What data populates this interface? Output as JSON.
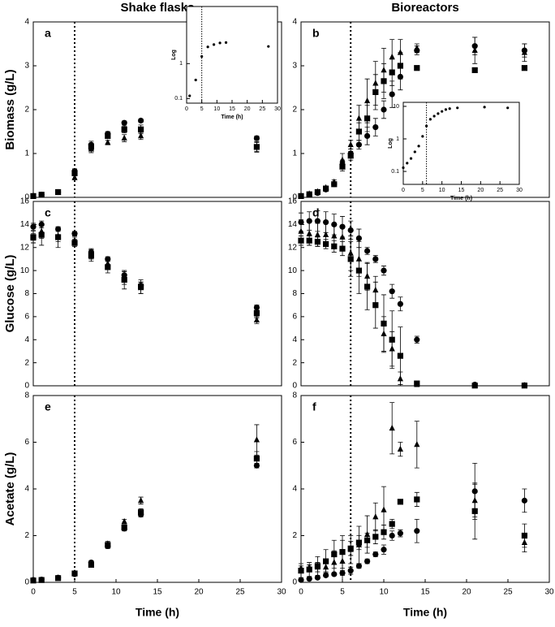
{
  "chart_data": [
    {
      "type": "scatter",
      "title": "Shake flasks",
      "label": "a",
      "ylabel": "Biomass (g/L)",
      "x": [
        0,
        1,
        3,
        5,
        7,
        9,
        11,
        13,
        27
      ],
      "xlim": [
        0,
        30
      ],
      "ylim": [
        0,
        4
      ],
      "yticks": [
        0,
        1,
        2,
        3,
        4
      ],
      "vline": 5,
      "series": [
        {
          "marker": "circle",
          "values": [
            0.03,
            0.06,
            0.12,
            0.6,
            1.2,
            1.45,
            1.7,
            1.75,
            1.35
          ],
          "errors": [
            0.01,
            0.01,
            0.02,
            0.05,
            0.08,
            0.05,
            0.04,
            0.04,
            0.05
          ]
        },
        {
          "marker": "square",
          "values": [
            0.03,
            0.06,
            0.12,
            0.55,
            1.15,
            1.4,
            1.55,
            1.55,
            1.15
          ],
          "errors": [
            0.01,
            0.01,
            0.02,
            0.05,
            0.08,
            0.05,
            0.08,
            0.1,
            0.12
          ]
        },
        {
          "marker": "triangle",
          "values": [
            0.03,
            0.05,
            0.11,
            0.45,
            1.1,
            1.25,
            1.35,
            1.4,
            1.15
          ],
          "errors": [
            0.01,
            0.01,
            0.02,
            0.05,
            0.08,
            0.05,
            0.08,
            0.08,
            0.1
          ]
        }
      ]
    },
    {
      "type": "scatter",
      "log": true,
      "ylabel": "Log",
      "xlabel": "Time (h)",
      "x": [
        1,
        3,
        5,
        7,
        9,
        11,
        13,
        27
      ],
      "xlim": [
        0,
        30
      ],
      "xticks": [
        0,
        5,
        10,
        15,
        20,
        25,
        30
      ],
      "ylim": [
        0.074,
        43
      ],
      "yticks": [
        0.1,
        1
      ],
      "vline": 5,
      "series": [
        {
          "marker": "circle",
          "values": [
            0.12,
            0.34,
            1.6,
            3.0,
            3.5,
            3.9,
            4.0,
            3.1
          ]
        }
      ]
    },
    {
      "type": "scatter",
      "title": "Bioreactors",
      "label": "b",
      "x": [
        0,
        1,
        2,
        3,
        4,
        5,
        6,
        7,
        8,
        9,
        10,
        11,
        12,
        14,
        21,
        27
      ],
      "xlim": [
        0,
        30
      ],
      "ylim": [
        0,
        4
      ],
      "yticks": [
        0,
        1,
        2,
        3,
        4
      ],
      "vline": 6,
      "series": [
        {
          "marker": "circle",
          "values": [
            0.03,
            0.06,
            0.1,
            0.18,
            0.3,
            0.75,
            1.0,
            1.2,
            1.4,
            1.6,
            2.0,
            2.35,
            2.75,
            3.35,
            3.45,
            3.35
          ],
          "errors": [
            0.01,
            0.02,
            0.03,
            0.04,
            0.05,
            0.1,
            0.1,
            0.1,
            0.2,
            0.2,
            0.2,
            0.3,
            0.3,
            0.1,
            0.2,
            0.15
          ]
        },
        {
          "marker": "square",
          "values": [
            0.03,
            0.07,
            0.12,
            0.2,
            0.3,
            0.7,
            0.95,
            1.5,
            1.8,
            2.4,
            2.65,
            2.85,
            3.0,
            2.95,
            2.9,
            2.95
          ],
          "errors": [
            0.01,
            0.02,
            0.03,
            0.04,
            0.05,
            0.1,
            0.1,
            0.2,
            0.3,
            0.4,
            0.4,
            0.3,
            0.3,
            0.05,
            0.05,
            0.05
          ]
        },
        {
          "marker": "triangle",
          "values": [
            0.04,
            0.08,
            0.13,
            0.22,
            0.35,
            0.85,
            1.2,
            1.8,
            2.2,
            2.6,
            2.9,
            3.2,
            3.3,
            3.4,
            3.35,
            3.3
          ],
          "errors": [
            0.01,
            0.02,
            0.03,
            0.04,
            0.05,
            0.15,
            0.1,
            0.3,
            0.5,
            0.5,
            0.5,
            0.4,
            0.3,
            0.1,
            0.3,
            0.2
          ]
        }
      ]
    },
    {
      "type": "scatter",
      "log": true,
      "ylabel": "Log",
      "xlabel": "Time (h)",
      "x": [
        0,
        1,
        2,
        3,
        4,
        5,
        6,
        7,
        8,
        9,
        10,
        11,
        12,
        14,
        21,
        27
      ],
      "xlim": [
        0,
        30
      ],
      "xticks": [
        0,
        5,
        10,
        15,
        20,
        25,
        30
      ],
      "ylim": [
        0.04,
        13.3
      ],
      "yticks": [
        0.1,
        1,
        10
      ],
      "vline": 6,
      "series": [
        {
          "marker": "circle",
          "values": [
            0.13,
            0.18,
            0.25,
            0.4,
            0.6,
            1.2,
            2.5,
            4,
            5,
            6,
            7,
            8,
            8.5,
            9,
            9.5,
            9
          ]
        }
      ]
    },
    {
      "type": "scatter",
      "label": "c",
      "ylabel": "Glucose (g/L)",
      "x": [
        0,
        1,
        3,
        5,
        7,
        9,
        11,
        13,
        27
      ],
      "xlim": [
        0,
        30
      ],
      "ylim": [
        0,
        16
      ],
      "yticks": [
        0,
        2,
        4,
        6,
        8,
        10,
        12,
        14,
        16
      ],
      "vline": 5,
      "series": [
        {
          "marker": "circle",
          "values": [
            13.8,
            14.0,
            13.6,
            13.2,
            11.6,
            11.0,
            9.6,
            8.7,
            6.8
          ],
          "errors": [
            0.3,
            0.3,
            0.2,
            0.2,
            0.3,
            0.2,
            0.3,
            0.3,
            0.2
          ]
        },
        {
          "marker": "square",
          "values": [
            12.9,
            13.1,
            12.9,
            12.4,
            11.3,
            10.3,
            9.2,
            8.6,
            6.3
          ],
          "errors": [
            0.5,
            0.9,
            0.9,
            0.3,
            0.5,
            0.5,
            0.8,
            0.6,
            0.4
          ]
        },
        {
          "marker": "triangle",
          "values": [
            12.8,
            13.4,
            13.0,
            12.6,
            11.4,
            10.6,
            9.4,
            8.5,
            5.7
          ],
          "errors": [
            0.4,
            0.6,
            0.5,
            0.3,
            0.4,
            0.4,
            0.6,
            0.5,
            0.3
          ]
        }
      ]
    },
    {
      "type": "scatter",
      "label": "d",
      "x": [
        0,
        1,
        2,
        3,
        4,
        5,
        6,
        7,
        8,
        9,
        10,
        11,
        12,
        14,
        21,
        27
      ],
      "xlim": [
        0,
        30
      ],
      "ylim": [
        0,
        16
      ],
      "yticks": [
        0,
        2,
        4,
        6,
        8,
        10,
        12,
        14,
        16
      ],
      "vline": 6,
      "series": [
        {
          "marker": "circle",
          "values": [
            14.2,
            14.3,
            14.3,
            14.2,
            14.0,
            13.8,
            13.5,
            12.8,
            11.7,
            11.0,
            10.0,
            8.2,
            7.1,
            4.0,
            0.1,
            0.05
          ],
          "errors": [
            0.8,
            0.8,
            0.9,
            0.9,
            0.9,
            0.9,
            0.8,
            0.8,
            0.3,
            0.3,
            0.4,
            0.6,
            0.6,
            0.3,
            0.05,
            0.05
          ]
        },
        {
          "marker": "square",
          "values": [
            12.6,
            12.6,
            12.5,
            12.3,
            12.1,
            11.9,
            11.0,
            10.0,
            8.6,
            7.0,
            5.4,
            4.0,
            2.6,
            0.2,
            0.02,
            0.02
          ],
          "errors": [
            0.4,
            0.4,
            0.4,
            0.4,
            0.5,
            0.6,
            1.5,
            2.0,
            2.0,
            2.0,
            2.5,
            2.5,
            2.5,
            0.2,
            0.02,
            0.02
          ]
        },
        {
          "marker": "triangle",
          "values": [
            13.4,
            13.2,
            13.1,
            13.1,
            13.0,
            12.9,
            11.5,
            11.0,
            9.5,
            8.3,
            4.5,
            3.2,
            0.6,
            0.1,
            0.05,
            0.02
          ],
          "errors": [
            1.0,
            1.0,
            1.0,
            1.0,
            1.0,
            1.0,
            1.5,
            1.5,
            1.2,
            1.2,
            1.5,
            1.5,
            0.6,
            0.1,
            0.05,
            0.02
          ]
        }
      ]
    },
    {
      "type": "scatter",
      "label": "e",
      "ylabel": "Acetate (g/L)",
      "xlabel": "Time (h)",
      "x": [
        0,
        1,
        3,
        5,
        7,
        9,
        11,
        13,
        27
      ],
      "xlim": [
        0,
        30
      ],
      "xticks": [
        0,
        5,
        10,
        15,
        20,
        25,
        30
      ],
      "ylim": [
        0,
        8
      ],
      "yticks": [
        0,
        2,
        4,
        6,
        8
      ],
      "vline": 5,
      "series": [
        {
          "marker": "circle",
          "values": [
            0.1,
            0.12,
            0.2,
            0.35,
            0.85,
            1.55,
            2.3,
            2.9,
            5.0
          ],
          "errors": [
            0.02,
            0.02,
            0.03,
            0.05,
            0.08,
            0.1,
            0.1,
            0.1,
            0.1
          ]
        },
        {
          "marker": "square",
          "values": [
            0.08,
            0.1,
            0.18,
            0.38,
            0.75,
            1.6,
            2.35,
            3.0,
            5.3
          ],
          "errors": [
            0.02,
            0.02,
            0.03,
            0.05,
            0.08,
            0.1,
            0.1,
            0.15,
            0.3
          ]
        },
        {
          "marker": "triangle",
          "values": [
            0.06,
            0.08,
            0.17,
            0.4,
            0.8,
            1.65,
            2.6,
            3.5,
            6.1
          ],
          "errors": [
            0.02,
            0.02,
            0.03,
            0.05,
            0.08,
            0.1,
            0.1,
            0.15,
            0.65
          ]
        }
      ]
    },
    {
      "type": "scatter",
      "label": "f",
      "xlabel": "Time (h)",
      "x": [
        0,
        1,
        2,
        3,
        4,
        5,
        6,
        7,
        8,
        9,
        10,
        11,
        12,
        14,
        21,
        27
      ],
      "xlim": [
        0,
        30
      ],
      "xticks": [
        0,
        5,
        10,
        15,
        20,
        25,
        30
      ],
      "ylim": [
        0,
        8
      ],
      "yticks": [
        0,
        2,
        4,
        6,
        8
      ],
      "vline": 6,
      "series": [
        {
          "marker": "circle",
          "values": [
            0.1,
            0.15,
            0.2,
            0.3,
            0.35,
            0.4,
            0.5,
            0.7,
            0.9,
            1.2,
            1.4,
            2.0,
            2.1,
            2.2,
            3.9,
            3.5
          ],
          "errors": [
            0.05,
            0.05,
            0.05,
            0.05,
            0.05,
            0.1,
            0.15,
            0.1,
            0.1,
            0.1,
            0.2,
            0.2,
            0.15,
            0.5,
            1.2,
            0.5
          ]
        },
        {
          "marker": "square",
          "values": [
            0.5,
            0.55,
            0.7,
            0.9,
            1.2,
            1.3,
            1.45,
            1.7,
            1.8,
            1.95,
            2.15,
            2.5,
            3.45,
            3.55,
            3.05,
            2.0
          ],
          "errors": [
            0.3,
            0.3,
            0.4,
            0.5,
            0.6,
            0.7,
            0.3,
            0.3,
            0.3,
            0.3,
            0.3,
            0.2,
            0.1,
            0.3,
            1.2,
            0.5
          ]
        },
        {
          "marker": "triangle",
          "values": [
            0.6,
            0.65,
            0.65,
            0.65,
            0.85,
            0.9,
            1.4,
            1.6,
            2.05,
            2.8,
            3.1,
            6.6,
            5.7,
            5.9,
            3.5,
            1.7
          ],
          "errors": [
            0.1,
            0.1,
            0.2,
            0.2,
            0.5,
            0.9,
            0.6,
            0.8,
            0.8,
            0.6,
            1.0,
            1.1,
            0.3,
            1.0,
            0.7,
            0.4
          ]
        }
      ]
    }
  ]
}
